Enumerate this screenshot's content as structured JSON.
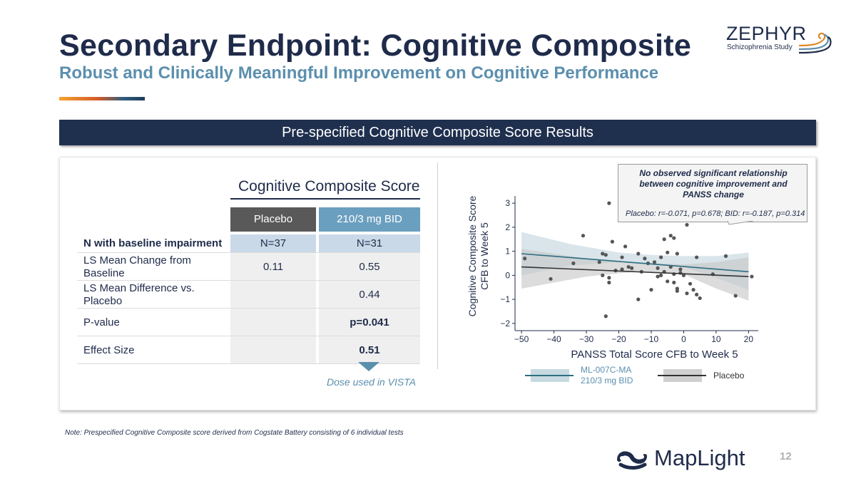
{
  "title": "Secondary Endpoint: Cognitive Composite",
  "subtitle": "Robust and Clinically Meaningful Improvement on Cognitive Performance",
  "logo": {
    "name": "ZEPHYR",
    "tagline": "Schizophrenia Study"
  },
  "banner": "Pre-specified Cognitive Composite Score Results",
  "table": {
    "title": "Cognitive Composite Score",
    "columns": [
      "Placebo",
      "210/3 mg BID"
    ],
    "rows": [
      {
        "label": "N with baseline impairment",
        "placebo": "N=37",
        "dose": "N=31"
      },
      {
        "label": "LS Mean Change from Baseline",
        "placebo": "0.11",
        "dose": "0.55"
      },
      {
        "label": "LS Mean Difference vs. Placebo",
        "placebo": "",
        "dose": "0.44"
      },
      {
        "label": "P-value",
        "placebo": "",
        "dose": "p=0.041"
      },
      {
        "label": "Effect Size",
        "placebo": "",
        "dose": "0.51"
      }
    ],
    "dose_note": "Dose used in VISTA"
  },
  "callout": {
    "main": "No observed significant relationship between cognitive improvement and PANSS change",
    "stats": "Placebo: r=-0.071, p=0.678; BID: r=-0.187, p=0.314"
  },
  "chart_data": {
    "type": "scatter",
    "xlabel": "PANSS Total Score CFB to Week 5",
    "ylabel": "Cognitive Composite Score CFB to Week 5",
    "xlim": [
      -52,
      23
    ],
    "ylim": [
      -2.3,
      3.3
    ],
    "xticks": [
      -50,
      -40,
      -30,
      -20,
      -10,
      0,
      10,
      20
    ],
    "yticks": [
      -2,
      -1,
      0,
      1,
      2,
      3
    ],
    "tick_labels_x": [
      "−50",
      "−40",
      "−30",
      "−20",
      "−10",
      "0",
      "10",
      "20"
    ],
    "tick_labels_y": [
      "−2",
      "−1",
      "0",
      "1",
      "2",
      "3"
    ],
    "colors": {
      "bid": "#2d6e82",
      "bid_band": "#b9cfd9",
      "placebo": "#333333",
      "placebo_band": "#c4c4c4",
      "points": "#555555"
    },
    "series": [
      {
        "name": "ML-007C-MA 210/3 mg BID",
        "fit_line": [
          [
            -50,
            0.9
          ],
          [
            20,
            0.15
          ]
        ],
        "ci_band": {
          "upper": [
            [
              -50,
              1.8
            ],
            [
              -35,
              1.3
            ],
            [
              -20,
              0.95
            ],
            [
              -10,
              0.85
            ],
            [
              0,
              0.8
            ],
            [
              10,
              0.8
            ],
            [
              20,
              0.95
            ]
          ],
          "lower": [
            [
              -50,
              0.0
            ],
            [
              -35,
              0.4
            ],
            [
              -20,
              0.55
            ],
            [
              -10,
              0.5
            ],
            [
              0,
              0.35
            ],
            [
              10,
              -0.1
            ],
            [
              20,
              -0.6
            ]
          ]
        },
        "points": [
          [
            -49,
            0.7
          ],
          [
            -34,
            0.5
          ],
          [
            -31,
            1.65
          ],
          [
            -25,
            0.9
          ],
          [
            -24,
            0.85
          ],
          [
            -23,
            -0.1
          ],
          [
            -22,
            1.4
          ],
          [
            -19,
            0.75
          ],
          [
            -18,
            1.2
          ],
          [
            -16,
            0.3
          ],
          [
            -14,
            0.9
          ],
          [
            -12,
            0.7
          ],
          [
            -9,
            0.55
          ],
          [
            -7,
            0.75
          ],
          [
            -6,
            1.5
          ],
          [
            -5,
            0.95
          ],
          [
            -4,
            1.65
          ],
          [
            -3,
            1.55
          ],
          [
            -2,
            0.9
          ],
          [
            1,
            2.1
          ],
          [
            4,
            0.75
          ],
          [
            13,
            0.8
          ],
          [
            -23,
            -0.3
          ],
          [
            -25,
            0.0
          ]
        ]
      },
      {
        "name": "Placebo",
        "fit_line": [
          [
            -50,
            0.35
          ],
          [
            20,
            -0.05
          ]
        ],
        "ci_band": {
          "upper": [
            [
              -50,
              1.1
            ],
            [
              -30,
              0.7
            ],
            [
              -15,
              0.55
            ],
            [
              0,
              0.45
            ],
            [
              10,
              0.55
            ],
            [
              20,
              0.75
            ]
          ],
          "lower": [
            [
              -50,
              -0.55
            ],
            [
              -30,
              -0.05
            ],
            [
              -15,
              0.15
            ],
            [
              0,
              0.05
            ],
            [
              10,
              -0.55
            ],
            [
              20,
              -1.05
            ]
          ]
        },
        "points": [
          [
            -23,
            3.0
          ],
          [
            -41,
            -0.15
          ],
          [
            -26,
            0.55
          ],
          [
            -24,
            -1.7
          ],
          [
            -21,
            0.2
          ],
          [
            -19,
            0.25
          ],
          [
            -17,
            0.35
          ],
          [
            -13,
            0.15
          ],
          [
            -11,
            0.5
          ],
          [
            -10,
            -0.6
          ],
          [
            -8,
            -0.05
          ],
          [
            -7,
            0.0
          ],
          [
            -6,
            0.15
          ],
          [
            -5,
            -0.25
          ],
          [
            -4,
            0.35
          ],
          [
            -3,
            -0.3
          ],
          [
            -2,
            -0.55
          ],
          [
            -1,
            0.25
          ],
          [
            -1,
            0.1
          ],
          [
            0,
            0.0
          ],
          [
            1,
            -0.75
          ],
          [
            2,
            -0.35
          ],
          [
            3,
            -0.6
          ],
          [
            4,
            -0.8
          ],
          [
            5,
            -0.95
          ],
          [
            9,
            0.05
          ],
          [
            16,
            -0.85
          ],
          [
            21,
            -0.05
          ],
          [
            -2,
            -0.65
          ],
          [
            -8,
            0.3
          ],
          [
            -14,
            -1.0
          ],
          [
            -3,
            0.05
          ]
        ]
      }
    ],
    "legend": [
      {
        "label": "ML-007C-MA 210/3 mg BID",
        "line1": "ML-007C-MA",
        "line2": "210/3 mg BID",
        "color": "#2d6e82",
        "band": "#b9cfd9"
      },
      {
        "label": "Placebo",
        "line1": "Placebo",
        "line2": "",
        "color": "#333333",
        "band": "#c4c4c4"
      }
    ],
    "legend_position": "bottom"
  },
  "note": "Note: Prespecified Cognitive Composite score derived from Cogstate Battery consisting of 6 individual tests",
  "footer": {
    "brand": "MapLight",
    "page_number": "12"
  }
}
